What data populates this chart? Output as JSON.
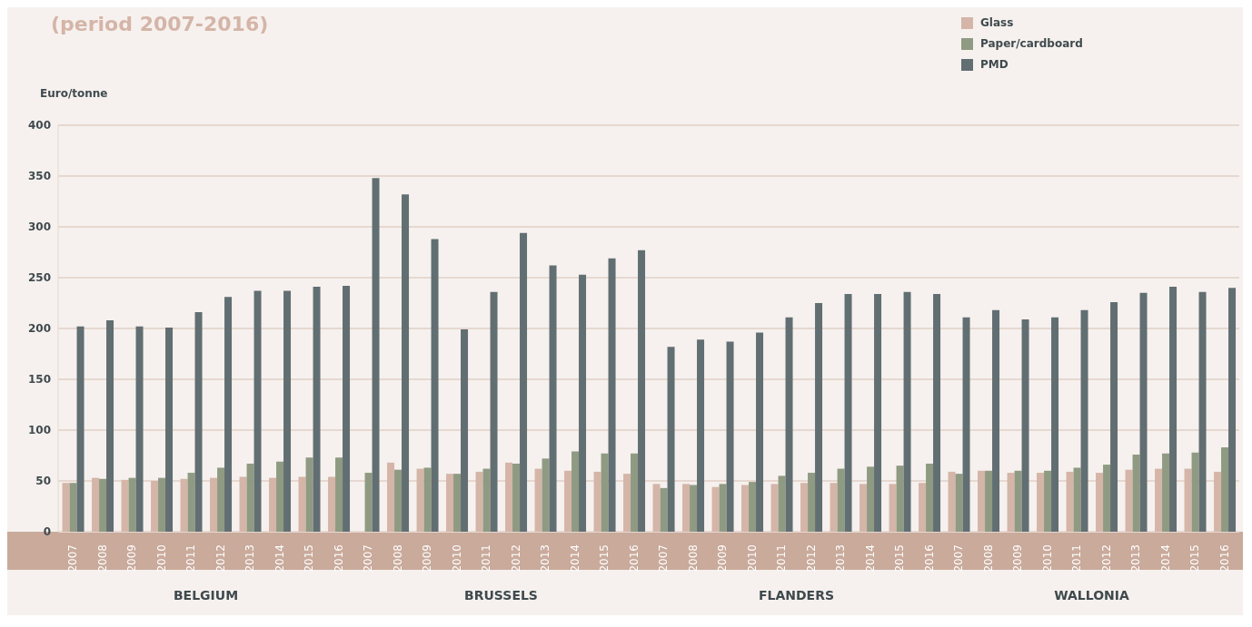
{
  "chart_data": {
    "type": "bar",
    "title": "(period 2007-2016)",
    "ylabel": "Euro/tonne",
    "categories": [
      "2007",
      "2008",
      "2009",
      "2010",
      "2011",
      "2012",
      "2013",
      "2014",
      "2015",
      "2016",
      "2007",
      "2008",
      "2009",
      "2010",
      "2011",
      "2012",
      "2013",
      "2014",
      "2015",
      "2016",
      "2007",
      "2008",
      "2009",
      "2010",
      "2011",
      "2012",
      "2013",
      "2014",
      "2015",
      "2016",
      "2007",
      "2008",
      "2009",
      "2010",
      "2011",
      "2012",
      "2013",
      "2014",
      "2015",
      "2016"
    ],
    "series": [
      {
        "name": "Glass",
        "color": "#d4b5a8",
        "values": [
          48,
          53,
          51,
          50,
          52,
          53,
          54,
          53,
          54,
          54,
          null,
          68,
          62,
          57,
          59,
          68,
          62,
          60,
          59,
          57,
          47,
          47,
          44,
          46,
          47,
          48,
          48,
          47,
          47,
          48,
          59,
          60,
          58,
          58,
          59,
          58,
          61,
          62,
          62,
          59
        ]
      },
      {
        "name": "Paper/cardboard",
        "color": "#8f9a82",
        "values": [
          48,
          52,
          53,
          53,
          58,
          63,
          67,
          69,
          73,
          73,
          58,
          61,
          63,
          57,
          62,
          67,
          72,
          79,
          77,
          77,
          43,
          46,
          47,
          49,
          55,
          58,
          62,
          64,
          65,
          67,
          57,
          60,
          60,
          60,
          63,
          66,
          76,
          77,
          78,
          83
        ]
      },
      {
        "name": "PMD",
        "color": "#616e72",
        "values": [
          202,
          208,
          202,
          201,
          216,
          231,
          237,
          237,
          241,
          242,
          348,
          332,
          288,
          199,
          236,
          294,
          262,
          253,
          269,
          277,
          182,
          189,
          187,
          196,
          211,
          225,
          234,
          234,
          236,
          234,
          211,
          218,
          209,
          211,
          218,
          226,
          235,
          241,
          236,
          240
        ]
      }
    ],
    "annotations": [
      "BELGIUM",
      "BRUSSELS",
      "FLANDERS",
      "WALLONIA"
    ],
    "ylim": [
      0,
      400
    ],
    "yticks": [
      0,
      50,
      100,
      150,
      200,
      250,
      300,
      350,
      400
    ],
    "grid": "y",
    "legend": "top right"
  }
}
